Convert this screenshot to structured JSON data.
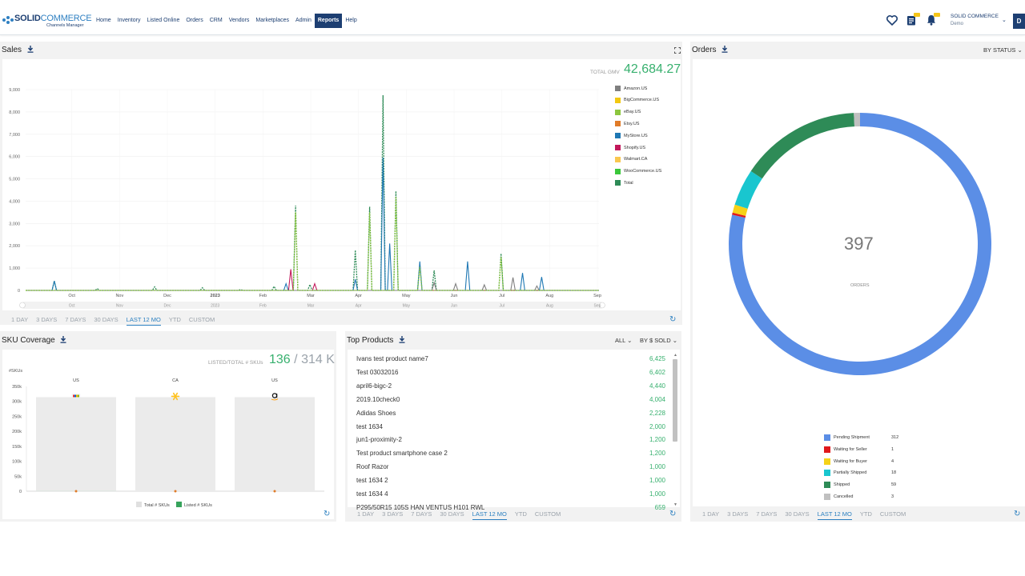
{
  "logo": {
    "brand_bold": "SOLID",
    "brand_light": "COMMERCE",
    "tagline": "Channels Manager"
  },
  "nav": [
    {
      "label": "Home"
    },
    {
      "label": "Inventory"
    },
    {
      "label": "Listed Online"
    },
    {
      "label": "Orders"
    },
    {
      "label": "CRM"
    },
    {
      "label": "Vendors"
    },
    {
      "label": "Marketplaces"
    },
    {
      "label": "Admin"
    },
    {
      "label": "Reports",
      "active": true
    },
    {
      "label": "Help"
    }
  ],
  "user": {
    "name": "SOLID COMMERCE",
    "sub": "Demo",
    "avatar": "D"
  },
  "icons": {
    "favorite": "heart-icon",
    "tasks": "clipboard-icon",
    "notifications": "bell-icon",
    "download": "download-icon",
    "expand": "expand-icon",
    "refresh": "refresh-icon"
  },
  "sales": {
    "title": "Sales",
    "gmv_label": "TOTAL GMV",
    "gmv_value": "42,684.27",
    "legend": [
      {
        "name": "Amazon.US",
        "color": "#7f7f7f"
      },
      {
        "name": "BigCommerce.US",
        "color": "#f2c811"
      },
      {
        "name": "eBay.US",
        "color": "#8cc63f"
      },
      {
        "name": "Etsy.US",
        "color": "#e07b28"
      },
      {
        "name": "MyStore.US",
        "color": "#1f78b4"
      },
      {
        "name": "Shopify.US",
        "color": "#c2185b"
      },
      {
        "name": "Walmart.CA",
        "color": "#f9c74f"
      },
      {
        "name": "WooCommerce.US",
        "color": "#3ac73a"
      },
      {
        "name": "Total",
        "color": "#2e8b57"
      }
    ],
    "range_tabs": [
      "1 DAY",
      "3 DAYS",
      "7 DAYS",
      "30 DAYS",
      "LAST 12 MO",
      "YTD",
      "CUSTOM"
    ],
    "range_active": 4
  },
  "sku": {
    "title": "SKU Coverage",
    "ratio_label": "LISTED/TOTAL # SKUs",
    "listed": "136",
    "separator": "/",
    "total": "314 K",
    "refresh": "↻"
  },
  "top_products": {
    "title": "Top Products",
    "filter": "ALL",
    "sort": "BY $ SOLD",
    "items": [
      {
        "name": "Ivans test product name7",
        "value": "6,425"
      },
      {
        "name": "Test 03032016",
        "value": "6,402"
      },
      {
        "name": "april6-bigc-2",
        "value": "4,440"
      },
      {
        "name": "2019.10check0",
        "value": "4,004"
      },
      {
        "name": "Adidas Shoes",
        "value": "2,228"
      },
      {
        "name": "test 1634",
        "value": "2,000"
      },
      {
        "name": "jun1-proximity-2",
        "value": "1,200"
      },
      {
        "name": "Test product smartphone case 2",
        "value": "1,200"
      },
      {
        "name": "Roof Razor",
        "value": "1,000"
      },
      {
        "name": "test 1634 2",
        "value": "1,000"
      },
      {
        "name": "test 1634 4",
        "value": "1,000"
      },
      {
        "name": "P295/50R15 105S HAN VENTUS H101 RWL",
        "value": "659"
      }
    ],
    "range_tabs": [
      "1 DAY",
      "3 DAYS",
      "7 DAYS",
      "30 DAYS",
      "LAST 12 MO",
      "YTD",
      "CUSTOM"
    ],
    "range_active": 4
  },
  "orders": {
    "title": "Orders",
    "group_by": "BY STATUS",
    "total": "397",
    "sub": "ORDERS",
    "range_tabs": [
      "1 DAY",
      "3 DAYS",
      "7 DAYS",
      "30 DAYS",
      "LAST 12 MO",
      "YTD",
      "CUSTOM"
    ],
    "range_active": 4
  },
  "chart_data": [
    {
      "type": "line",
      "title": "",
      "xlabel": "",
      "ylabel": "",
      "ylim": [
        0,
        9000
      ],
      "yticks": [
        "0",
        "1,000",
        "2,000",
        "3,000",
        "4,000",
        "5,000",
        "6,000",
        "7,000",
        "8,000",
        "9,000"
      ],
      "x_ticks": [
        "Oct",
        "Nov",
        "Dec",
        "2023",
        "Feb",
        "Mar",
        "Apr",
        "May",
        "Jun",
        "Jul",
        "Aug",
        "Sep"
      ],
      "navigator_ticks": [
        "Oct",
        "Nov",
        "Dec",
        "2023",
        "Feb",
        "Mar",
        "Apr",
        "May",
        "Jun",
        "Jul",
        "Aug",
        "Sep"
      ],
      "grid": true,
      "legend": "right",
      "x_range_months": [
        0,
        12
      ],
      "series": [
        {
          "name": "Total",
          "color": "#2e8b57",
          "dashed": true,
          "points": [
            [
              0.6,
              420
            ],
            [
              1.5,
              80
            ],
            [
              2.7,
              160
            ],
            [
              3.7,
              120
            ],
            [
              4.5,
              40
            ],
            [
              5.2,
              180
            ],
            [
              5.65,
              3800
            ],
            [
              5.95,
              260
            ],
            [
              6.9,
              1800
            ],
            [
              7.2,
              3750
            ],
            [
              7.48,
              8750
            ],
            [
              7.75,
              4450
            ],
            [
              8.25,
              1150
            ],
            [
              8.55,
              900
            ],
            [
              9.95,
              1650
            ]
          ]
        },
        {
          "name": "MyStore.US",
          "color": "#1f78b4",
          "points": [
            [
              0.6,
              420
            ],
            [
              5.45,
              300
            ],
            [
              6.9,
              500
            ],
            [
              7.48,
              5950
            ],
            [
              7.62,
              2100
            ],
            [
              8.25,
              1300
            ],
            [
              9.25,
              1300
            ],
            [
              10.4,
              780
            ],
            [
              10.8,
              600
            ]
          ]
        },
        {
          "name": "Shopify.US",
          "color": "#c2185b",
          "points": [
            [
              5.55,
              950
            ],
            [
              6.05,
              300
            ]
          ]
        },
        {
          "name": "Amazon.US",
          "color": "#7f7f7f",
          "points": [
            [
              8.55,
              350
            ],
            [
              9.0,
              300
            ],
            [
              9.6,
              250
            ],
            [
              10.2,
              580
            ],
            [
              10.7,
              200
            ]
          ]
        },
        {
          "name": "eBay.US",
          "color": "#8cc63f",
          "dashed": true,
          "points": [
            [
              5.65,
              3500
            ],
            [
              7.2,
              3500
            ],
            [
              7.75,
              4200
            ],
            [
              8.25,
              1050
            ],
            [
              9.95,
              1500
            ]
          ]
        }
      ]
    },
    {
      "type": "bar",
      "title": "",
      "ylabel": "#SKUs",
      "ylim": [
        0,
        350000
      ],
      "yticks": [
        "0",
        "50k",
        "100k",
        "150k",
        "200k",
        "250k",
        "300k",
        "350k"
      ],
      "categories": [
        "US",
        "CA",
        "US"
      ],
      "series": [
        {
          "name": "Total # SKUs",
          "color": "#ebebeb",
          "values": [
            314000,
            314000,
            314000
          ]
        },
        {
          "name": "Listed # SKUs",
          "color": "#37a35c",
          "values": [
            136,
            0,
            0
          ]
        }
      ],
      "legend": "bottom"
    },
    {
      "type": "pie",
      "title": "",
      "total": 397,
      "slices": [
        {
          "name": "Pending Shipment",
          "value": 312,
          "color": "#5b8ee6"
        },
        {
          "name": "Waiting for Seller",
          "value": 1,
          "color": "#e0191c"
        },
        {
          "name": "Waiting for Buyer",
          "value": 4,
          "color": "#f5d218"
        },
        {
          "name": "Partially Shipped",
          "value": 18,
          "color": "#19c6cf"
        },
        {
          "name": "Shipped",
          "value": 59,
          "color": "#2e8b57"
        },
        {
          "name": "Cancelled",
          "value": 3,
          "color": "#c0c0c0"
        }
      ],
      "legend": "bottom"
    }
  ]
}
